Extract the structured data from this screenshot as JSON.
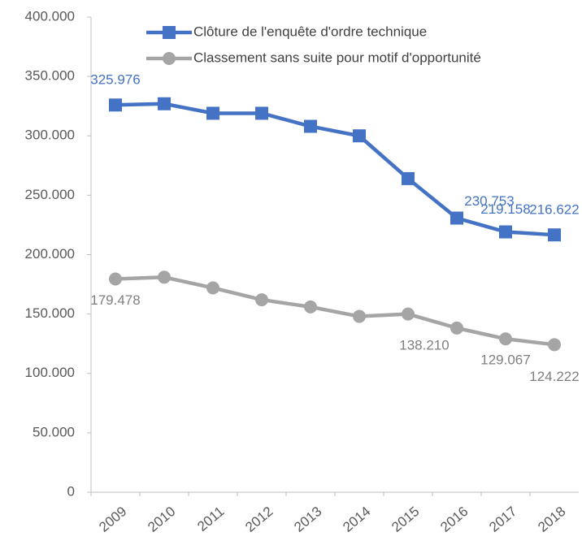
{
  "chart_data": {
    "type": "line",
    "categories": [
      "2009",
      "2010",
      "2011",
      "2012",
      "2013",
      "2014",
      "2015",
      "2016",
      "2017",
      "2018"
    ],
    "series": [
      {
        "name": "Clôture de l'enquête d'ordre technique",
        "color": "#4472c4",
        "marker": "square",
        "values": [
          325976,
          327000,
          319000,
          319000,
          308000,
          300000,
          264000,
          230753,
          219158,
          216622
        ],
        "value_labels": [
          "325.976",
          null,
          null,
          null,
          null,
          null,
          null,
          "230.753",
          "219.158",
          "216.622"
        ]
      },
      {
        "name": "Classement sans suite pour motif d'opportunité",
        "color": "#a5a5a5",
        "marker": "circle",
        "values": [
          179478,
          181000,
          172000,
          162000,
          156000,
          148000,
          150000,
          138210,
          129067,
          124222
        ],
        "value_labels": [
          "179.478",
          null,
          null,
          null,
          null,
          null,
          null,
          "138.210",
          "129.067",
          "124.222"
        ]
      }
    ],
    "ylim": [
      0,
      400000
    ],
    "yticks": [
      0,
      {
        "value": 50000,
        "label": "50.000"
      },
      {
        "value": 100000,
        "label": "100.000"
      },
      {
        "value": 150000,
        "label": "150.000"
      },
      {
        "value": 200000,
        "label": "200.000"
      },
      {
        "value": 250000,
        "label": "250.000"
      },
      {
        "value": 300000,
        "label": "300.000"
      },
      {
        "value": 350000,
        "label": "350.000"
      },
      {
        "value": 400000,
        "label": "400.000"
      }
    ],
    "grid": false
  }
}
